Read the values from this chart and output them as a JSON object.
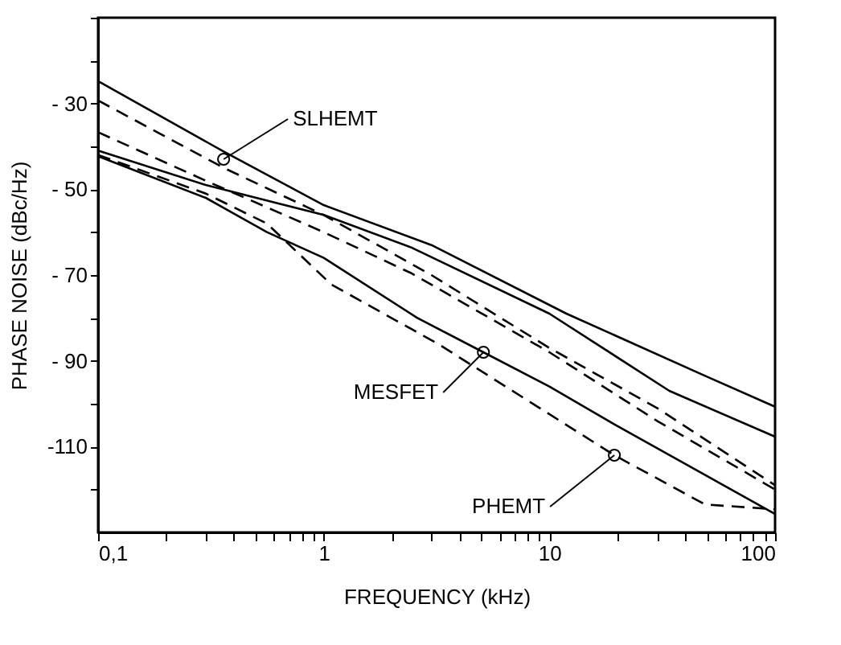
{
  "chart_data": {
    "type": "line",
    "xlabel": "FREQUENCY (kHz)",
    "ylabel": "PHASE NOISE (dBc/Hz)",
    "log": "x",
    "xlim": [
      0.1,
      100
    ],
    "ylim": [
      -130,
      -10
    ],
    "xticks": [
      {
        "value": 0.1,
        "label": "0,1"
      },
      {
        "value": 0.2,
        "label": null
      },
      {
        "value": 0.3,
        "label": null
      },
      {
        "value": 0.4,
        "label": null
      },
      {
        "value": 0.5,
        "label": null
      },
      {
        "value": 0.6,
        "label": null
      },
      {
        "value": 0.7,
        "label": null
      },
      {
        "value": 0.8,
        "label": null
      },
      {
        "value": 0.9,
        "label": null
      },
      1,
      {
        "value": 2,
        "label": null
      },
      {
        "value": 3,
        "label": null
      },
      {
        "value": 4,
        "label": null
      },
      {
        "value": 5,
        "label": null
      },
      {
        "value": 6,
        "label": null
      },
      {
        "value": 7,
        "label": null
      },
      {
        "value": 8,
        "label": null
      },
      {
        "value": 9,
        "label": null
      },
      10,
      {
        "value": 20,
        "label": null
      },
      {
        "value": 30,
        "label": null
      },
      {
        "value": 40,
        "label": null
      },
      {
        "value": 50,
        "label": null
      },
      {
        "value": 60,
        "label": null
      },
      {
        "value": 70,
        "label": null
      },
      {
        "value": 80,
        "label": null
      },
      {
        "value": 90,
        "label": null
      },
      100
    ],
    "yticks": [
      {
        "value": -10,
        "label": null
      },
      {
        "value": -20,
        "label": null
      },
      {
        "value": -30,
        "label": "- 30"
      },
      {
        "value": -40,
        "label": null
      },
      {
        "value": -50,
        "label": "- 50"
      },
      {
        "value": -60,
        "label": null
      },
      {
        "value": -70,
        "label": "- 70"
      },
      {
        "value": -80,
        "label": null
      },
      {
        "value": -90,
        "label": "- 90"
      },
      {
        "value": -100,
        "label": null
      },
      {
        "value": -110,
        "label": "-110"
      },
      {
        "value": -120,
        "label": null
      }
    ],
    "grid": false,
    "marker": "none",
    "series": [
      {
        "color": "#000000",
        "line_style": "solid",
        "x": [
          0.1,
          0.36,
          1,
          3,
          11.9,
          49,
          100
        ],
        "values": [
          -24.8,
          -41.2,
          -53.7,
          -63,
          -79,
          -93.5,
          -100.7
        ]
      },
      {
        "color": "#000000",
        "line_style": "dashed",
        "x": [
          0.1,
          0.36,
          1,
          3,
          10,
          30,
          100
        ],
        "values": [
          -29.3,
          -45,
          -56,
          -70,
          -87,
          -101,
          -119
        ]
      },
      {
        "color": "#000000",
        "line_style": "solid",
        "x": [
          0.1,
          0.3,
          1,
          2.45,
          10,
          34,
          100
        ],
        "values": [
          -41,
          -49,
          -56,
          -63.6,
          -79,
          -97,
          -107.7
        ]
      },
      {
        "color": "#000000",
        "line_style": "dashed",
        "x": [
          0.1,
          0.3,
          1,
          2.45,
          10,
          30,
          100
        ],
        "values": [
          -36.7,
          -48,
          -60,
          -69.6,
          -88,
          -104,
          -120
        ]
      },
      {
        "color": "#000000",
        "line_style": "solid",
        "x": [
          0.1,
          0.3,
          0.56,
          1,
          2.6,
          5.1,
          10,
          19.4,
          100
        ],
        "values": [
          -42.3,
          -52,
          -60,
          -66,
          -80,
          -88,
          -96,
          -104.8,
          -125.7
        ]
      },
      {
        "color": "#000000",
        "line_style": "dashed",
        "x": [
          0.1,
          0.3,
          0.56,
          1.08,
          3.2,
          19.4,
          49,
          100
        ],
        "values": [
          -42,
          -51,
          -58,
          -72.2,
          -86,
          -112,
          -123.5,
          -124.6
        ]
      }
    ],
    "annotations": [
      {
        "text": "SLHEMT",
        "x": 0.36,
        "y": -43
      },
      {
        "text": "MESFET",
        "x": 5.1,
        "y": -88
      },
      {
        "text": "PHEMT",
        "x": 19.4,
        "y": -112
      }
    ]
  }
}
